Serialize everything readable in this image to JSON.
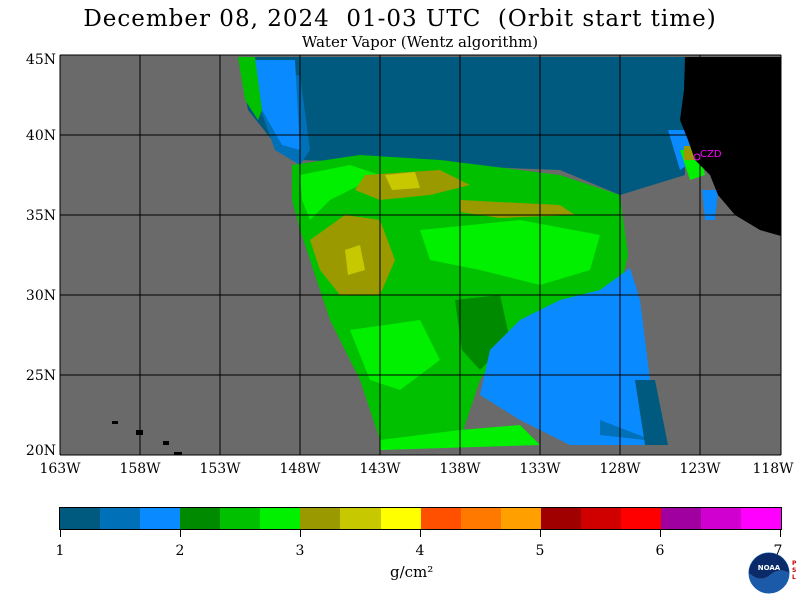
{
  "header": {
    "title": "December 08, 2024  01-03 UTC  (Orbit start time)",
    "subtitle": "Water Vapor (Wentz algorithm)"
  },
  "map": {
    "lat_labels": [
      "45N",
      "40N",
      "35N",
      "30N",
      "25N",
      "20N"
    ],
    "lon_labels": [
      "163W",
      "158W",
      "153W",
      "148W",
      "143W",
      "138W",
      "133W",
      "128W",
      "123W",
      "118W"
    ],
    "station_label": "CZD",
    "colors": {
      "no_data": "#6a6a6a",
      "land": "#000000",
      "grid": "#000000",
      "station": "#ff00ff"
    }
  },
  "colorbar": {
    "labels": [
      "1",
      "2",
      "3",
      "4",
      "5",
      "6",
      "7"
    ],
    "units": "g/cm²",
    "colors": [
      "#005a80",
      "#0070b8",
      "#0a8aff",
      "#008a00",
      "#00c000",
      "#00f000",
      "#9a9a00",
      "#c8c800",
      "#ffff00",
      "#ff5000",
      "#ff7800",
      "#ffa000",
      "#a00000",
      "#d00000",
      "#ff0000",
      "#a000a0",
      "#d000d0",
      "#ff00ff"
    ]
  },
  "logo": {
    "text": "NOAA",
    "side_text": "PSL"
  }
}
